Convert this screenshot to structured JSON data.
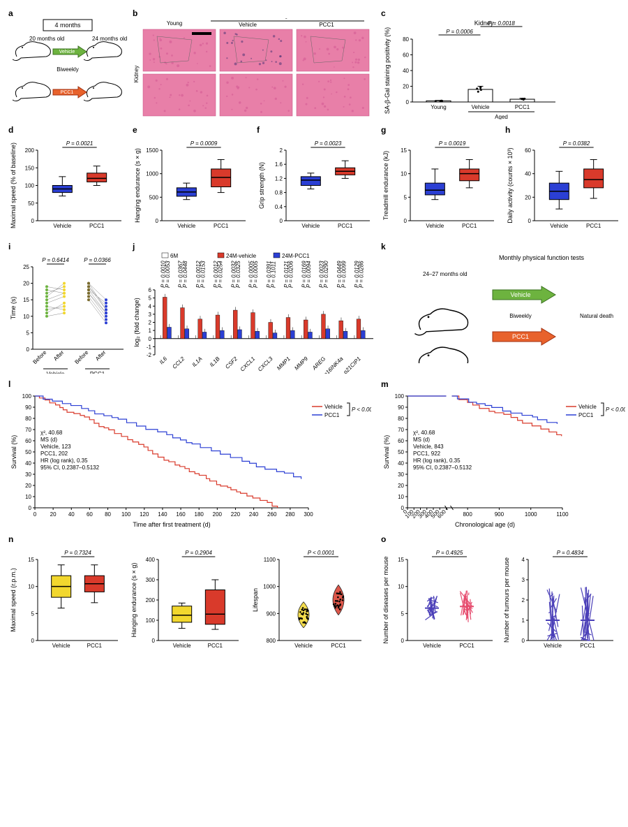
{
  "colors": {
    "vehicle": "#2b3fd4",
    "pcc1": "#d93a2b",
    "young": "#808080",
    "yellow": "#f2d72e",
    "green": "#6db33f",
    "black": "#000",
    "white": "#fff",
    "purple": "#4a3fb8",
    "pink": "#e64c6e",
    "bg": "#fff",
    "grid": "#e0e0e0"
  },
  "a": {
    "label": "a",
    "duration": "4 months",
    "top_left": "20 months old",
    "top_right": "24 months old",
    "mid": "Biweekly",
    "arrow_top": "Vehicle",
    "arrow_bot": "PCC1"
  },
  "b": {
    "label": "b",
    "cols": [
      "Young",
      "Vehicle",
      "PCC1"
    ],
    "group": "Aged",
    "row": "Kidney",
    "tile_color": "#e87fa8",
    "scale": "#000"
  },
  "c": {
    "label": "c",
    "title": "Kidney",
    "ylabel": "SA-β-Gal staining positivity (%)",
    "ylim": [
      0,
      80
    ],
    "ytick": 20,
    "cats": [
      "Young",
      "Vehicle",
      "PCC1"
    ],
    "group": "Aged",
    "means": [
      1.5,
      16,
      3.5
    ],
    "sd": [
      0.5,
      4,
      1.2
    ],
    "colors": [
      "#808080",
      "#808080",
      "#808080"
    ],
    "pvals": [
      {
        "a": 0,
        "b": 1,
        "p": "P = 0.0006"
      },
      {
        "a": 1,
        "b": 2,
        "p": "P = 0.0018"
      }
    ]
  },
  "d": {
    "label": "d",
    "ylabel": "Maximal speed (% of baseline)",
    "ylim": [
      0,
      200
    ],
    "ytick": 50,
    "cats": [
      "Vehicle",
      "PCC1"
    ],
    "box": [
      {
        "q1": 80,
        "med": 90,
        "q3": 100,
        "lo": 70,
        "hi": 125,
        "color": "#2b3fd4"
      },
      {
        "q1": 110,
        "med": 120,
        "q3": 135,
        "lo": 100,
        "hi": 155,
        "color": "#d93a2b"
      }
    ],
    "pval": "P = 0.0021"
  },
  "e": {
    "label": "e",
    "ylabel": "Hanging endurance (s × g)",
    "ylim": [
      0,
      1500
    ],
    "ytick": 500,
    "cats": [
      "Vehicle",
      "PCC1"
    ],
    "box": [
      {
        "q1": 520,
        "med": 610,
        "q3": 700,
        "lo": 450,
        "hi": 800,
        "color": "#2b3fd4"
      },
      {
        "q1": 720,
        "med": 920,
        "q3": 1100,
        "lo": 600,
        "hi": 1300,
        "color": "#d93a2b"
      }
    ],
    "pval": "P = 0.0009"
  },
  "f": {
    "label": "f",
    "ylabel": "Grip strength (N)",
    "ylim": [
      0,
      2.0
    ],
    "ytick": 0.4,
    "cats": [
      "Vehicle",
      "PCC1"
    ],
    "box": [
      {
        "q1": 1.0,
        "med": 1.15,
        "q3": 1.25,
        "lo": 0.9,
        "hi": 1.35,
        "color": "#2b3fd4"
      },
      {
        "q1": 1.3,
        "med": 1.4,
        "q3": 1.5,
        "lo": 1.2,
        "hi": 1.7,
        "color": "#d93a2b"
      }
    ],
    "pval": "P = 0.0023"
  },
  "g": {
    "label": "g",
    "ylabel": "Treadmill endurance (kJ)",
    "ylim": [
      0,
      15
    ],
    "ytick": 5,
    "cats": [
      "Vehicle",
      "PCC1"
    ],
    "box": [
      {
        "q1": 5.5,
        "med": 6.5,
        "q3": 8,
        "lo": 4.5,
        "hi": 11,
        "color": "#2b3fd4"
      },
      {
        "q1": 8.5,
        "med": 10,
        "q3": 11,
        "lo": 7,
        "hi": 13,
        "color": "#d93a2b"
      }
    ],
    "pval": "P = 0.0019"
  },
  "h": {
    "label": "h",
    "ylabel": "Daily activity (counts × 10³)",
    "ylim": [
      0,
      60
    ],
    "ytick": 20,
    "cats": [
      "Vehicle",
      "PCC1"
    ],
    "box": [
      {
        "q1": 18,
        "med": 25,
        "q3": 32,
        "lo": 10,
        "hi": 42,
        "color": "#2b3fd4"
      },
      {
        "q1": 28,
        "med": 35,
        "q3": 44,
        "lo": 19,
        "hi": 52,
        "color": "#d93a2b"
      }
    ],
    "pval": "P = 0.0382"
  },
  "i": {
    "label": "i",
    "ylabel": "Time (s)",
    "ylim": [
      0,
      25
    ],
    "ytick": 5,
    "groups": [
      "Vehicle",
      "PCC1"
    ],
    "ticks": [
      "Before",
      "After",
      "Before",
      "After"
    ],
    "pvals": [
      "P = 0.6414",
      "P = 0.0366"
    ],
    "veh_pairs": [
      [
        14,
        16
      ],
      [
        18,
        17
      ],
      [
        12,
        13
      ],
      [
        16,
        20
      ],
      [
        10,
        11
      ],
      [
        19,
        18
      ],
      [
        15,
        17
      ],
      [
        13,
        12
      ],
      [
        17,
        19
      ],
      [
        11,
        14
      ]
    ],
    "pcc_pairs": [
      [
        19,
        12
      ],
      [
        18,
        11
      ],
      [
        20,
        15
      ],
      [
        17,
        10
      ],
      [
        16,
        9
      ],
      [
        19,
        13
      ],
      [
        15,
        8
      ],
      [
        18,
        14
      ],
      [
        20,
        12
      ],
      [
        17,
        11
      ]
    ],
    "before_colors": [
      "#6db33f",
      "#7a6b2e"
    ],
    "after_colors": [
      "#f2d72e",
      "#2b3fd4"
    ]
  },
  "j": {
    "label": "j",
    "ylabel": "log₂ (fold change)",
    "ylim": [
      -2,
      6
    ],
    "ytick": 1,
    "genes": [
      "IL6",
      "CCL2",
      "IL1A",
      "IL1B",
      "CSF2",
      "CXCL1",
      "CXCL3",
      "MMP1",
      "MMP9",
      "AREG",
      "p16INK4a",
      "p21CIP1"
    ],
    "series": [
      {
        "name": "6M",
        "color": "#ffffff",
        "vals": [
          0,
          0,
          0,
          0,
          0,
          0,
          0,
          0,
          0,
          0,
          0,
          0
        ]
      },
      {
        "name": "24M-vehicle",
        "color": "#d93a2b",
        "vals": [
          5.1,
          3.8,
          2.4,
          2.9,
          3.5,
          3.2,
          2.0,
          2.6,
          2.3,
          3.0,
          2.2,
          2.4
        ]
      },
      {
        "name": "24M-PCC1",
        "color": "#2b3fd4",
        "vals": [
          1.4,
          1.2,
          0.8,
          1.0,
          1.1,
          0.9,
          0.7,
          1.0,
          0.8,
          1.2,
          0.9,
          1.0
        ]
      }
    ],
    "pvals": [
      "P = 0.0010",
      "P = 0.0053",
      "P = 0.0367",
      "P = 0.0448",
      "P = 0.0012",
      "P = 0.0153",
      "P = 0.0012",
      "P = 0.0254",
      "P = 0.0032",
      "P = 0.0325",
      "P = 0.0005",
      "P = 0.0005",
      "P = 0.0391",
      "P = 0.1011",
      "P = 0.0121",
      "P = 0.0206",
      "P = 0.0169",
      "P = 0.0094",
      "P = 0.0023",
      "P = 0.0290",
      "P = 0.0449",
      "P = 0.0099",
      "P = 0.0129",
      "P = 0.0286",
      "P = 0.0318"
    ]
  },
  "k": {
    "label": "k",
    "title": "Monthly physical function tests",
    "age": "24–27 months old",
    "mid": "Biweekly",
    "right": "Natural death",
    "arrow_top": "Vehicle",
    "arrow_bot": "PCC1"
  },
  "l": {
    "label": "l",
    "ylabel": "Survival (%)",
    "xlabel": "Time after first treatment (d)",
    "ylim": [
      0,
      100
    ],
    "ytick": 10,
    "xlim": [
      0,
      300
    ],
    "xtick": 20,
    "stats": [
      "χ², 40.68",
      "MS (d)",
      "Vehicle, 123",
      "PCC1, 202",
      "HR (log rank), 0.35",
      "95% CI, 0.2387–0.5132"
    ],
    "legend": [
      {
        "name": "Vehicle",
        "color": "#d93a2b"
      },
      {
        "name": "PCC1",
        "color": "#2b3fd4"
      }
    ],
    "pval": "P < 0.0001"
  },
  "m": {
    "label": "m",
    "ylabel": "Survival (%)",
    "xlabel": "Chronological age (d)",
    "ylim": [
      0,
      100
    ],
    "ytick": 10,
    "xbreak": [
      0,
      600,
      750,
      1100
    ],
    "xtick1": [
      0,
      100,
      200,
      300,
      400,
      500,
      600
    ],
    "xtick2": [
      800,
      900,
      1000,
      1100
    ],
    "stats": [
      "χ², 40.68",
      "MS (d)",
      "Vehicle, 843",
      "PCC1, 922",
      "HR (log rank), 0.35",
      "95% CI, 0.2387–0.5132"
    ],
    "legend": [
      {
        "name": "Vehicle",
        "color": "#d93a2b"
      },
      {
        "name": "PCC1",
        "color": "#2b3fd4"
      }
    ],
    "pval": "P < 0.0001"
  },
  "n": {
    "label": "n",
    "sub": [
      {
        "ylabel": "Maximal speed (r.p.m.)",
        "ylim": [
          0,
          15
        ],
        "ytick": 5,
        "cats": [
          "Vehicle",
          "PCC1"
        ],
        "box": [
          {
            "q1": 8,
            "med": 10,
            "q3": 12,
            "lo": 6,
            "hi": 14,
            "color": "#f2d72e"
          },
          {
            "q1": 9,
            "med": 10.5,
            "q3": 12,
            "lo": 7,
            "hi": 14,
            "color": "#d93a2b"
          }
        ],
        "pval": "P = 0.7324"
      },
      {
        "ylabel": "Hanging endurance (s × g)",
        "ylim": [
          0,
          400
        ],
        "ytick": 100,
        "cats": [
          "Vehicle",
          "PCC1"
        ],
        "box": [
          {
            "q1": 90,
            "med": 125,
            "q3": 170,
            "lo": 60,
            "hi": 185,
            "color": "#f2d72e"
          },
          {
            "q1": 80,
            "med": 130,
            "q3": 250,
            "lo": 55,
            "hi": 300,
            "color": "#d93a2b"
          }
        ],
        "pval": "P = 0.2904"
      },
      {
        "ylabel": "Lifespan",
        "ylim": [
          800,
          1100
        ],
        "ytick": 100,
        "cats": [
          "Vehicle",
          "PCC1"
        ],
        "colors": [
          "#f2d72e",
          "#d93a2b"
        ],
        "pval": "P < 0.0001"
      }
    ]
  },
  "o": {
    "label": "o",
    "sub": [
      {
        "ylabel": "Number of diseases per mouse",
        "ylim": [
          0,
          15
        ],
        "ytick": 5,
        "cats": [
          "Vehicle",
          "PCC1"
        ],
        "means": [
          6,
          6.3
        ],
        "sd": [
          1.2,
          1.5
        ],
        "colors": [
          "#4a3fb8",
          "#e64c6e"
        ],
        "pval": "P = 0.4925"
      },
      {
        "ylabel": "Number of tumours per mouse",
        "ylim": [
          0,
          4
        ],
        "ytick": 1,
        "cats": [
          "Vehicle",
          "PCC1"
        ],
        "means": [
          1.0,
          1.0
        ],
        "sd": [
          0.8,
          0.9
        ],
        "colors": [
          "#4a3fb8",
          "#4a3fb8"
        ],
        "pval": "P = 0.4834"
      }
    ]
  }
}
